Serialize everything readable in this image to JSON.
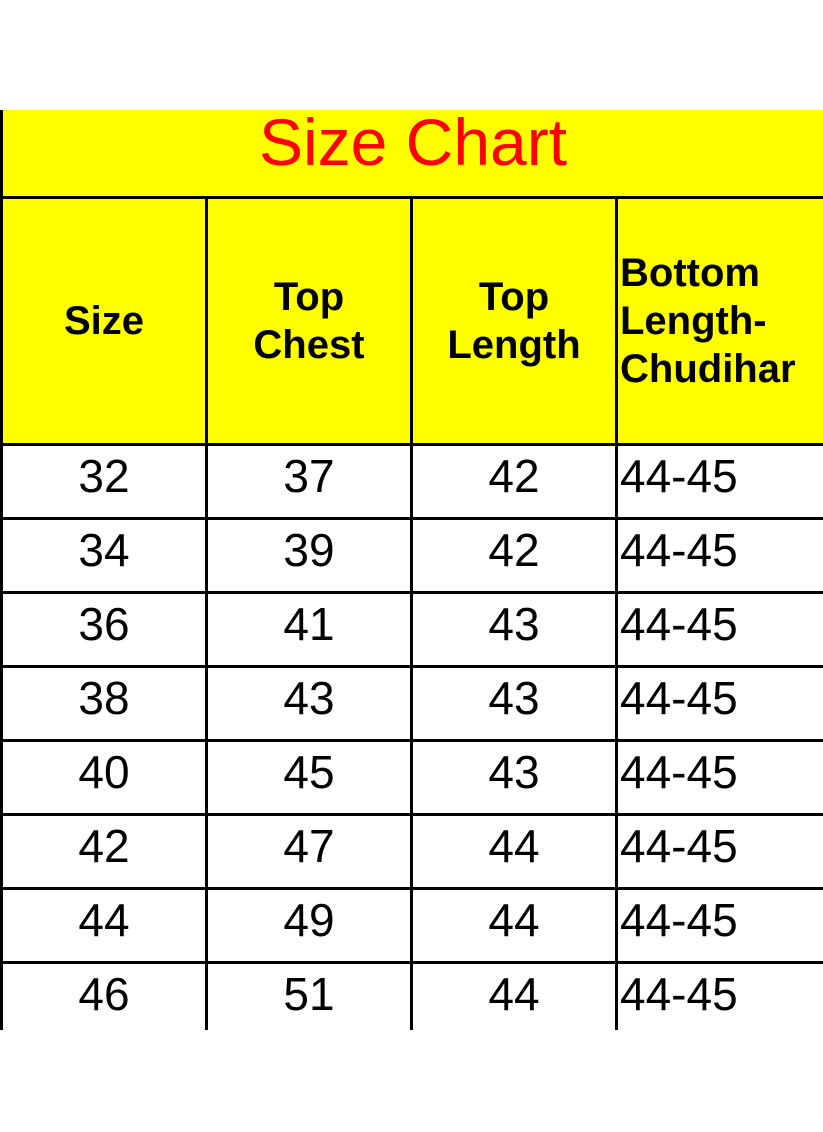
{
  "title": "Size Chart",
  "colors": {
    "title_text": "#ff0000",
    "header_background": "#ffff00",
    "grid": "#000000"
  },
  "columns": [
    [
      "Size"
    ],
    [
      "Top",
      "Chest"
    ],
    [
      "Top",
      "Length"
    ],
    [
      "Bottom",
      "Length-",
      "Chudihar"
    ]
  ],
  "rows": [
    [
      "32",
      "37",
      "42",
      "44-45"
    ],
    [
      "34",
      "39",
      "42",
      "44-45"
    ],
    [
      "36",
      "41",
      "43",
      "44-45"
    ],
    [
      "38",
      "43",
      "43",
      "44-45"
    ],
    [
      "40",
      "45",
      "43",
      "44-45"
    ],
    [
      "42",
      "47",
      "44",
      "44-45"
    ],
    [
      "44",
      "49",
      "44",
      "44-45"
    ],
    [
      "46",
      "51",
      "44",
      "44-45"
    ]
  ]
}
